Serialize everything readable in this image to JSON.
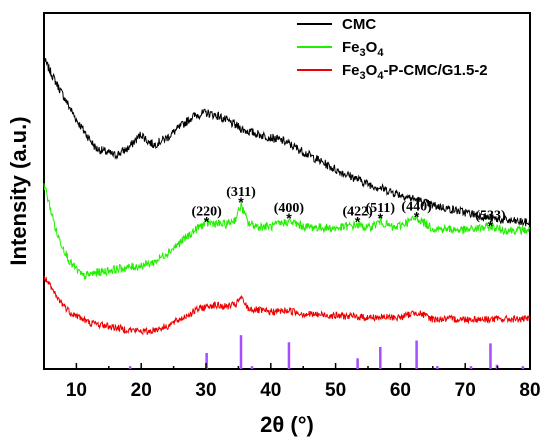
{
  "chart_data": {
    "type": "line",
    "xlabel": "2θ (°)",
    "ylabel": "Intensity (a.u.)",
    "xlim": [
      5,
      80
    ],
    "xticks": [
      "10",
      "20",
      "30",
      "40",
      "50",
      "60",
      "70",
      "80"
    ],
    "ylim": [
      0,
      100
    ],
    "legend_position": "top-right",
    "series": [
      {
        "key": "cmc",
        "name": "CMC",
        "name_sub": "",
        "name_parts": [
          "CMC"
        ],
        "color": "#000000",
        "noise": 1.2,
        "x": [
          5,
          7,
          10,
          13,
          16,
          18,
          19,
          20,
          21,
          22,
          24,
          26,
          28,
          30,
          32,
          34,
          36,
          38,
          40,
          42,
          44,
          46,
          50,
          55,
          60,
          65,
          70,
          75,
          80
        ],
        "y": [
          87,
          80,
          70,
          62,
          60,
          62,
          64,
          66,
          64,
          63,
          65,
          68,
          71,
          72,
          71,
          69,
          67,
          66,
          65,
          64,
          62,
          60,
          56,
          52,
          49,
          46,
          44,
          42,
          41
        ]
      },
      {
        "key": "fe3o4",
        "name": "Fe3O4",
        "name_parts": [
          "Fe",
          "3",
          "O",
          "4"
        ],
        "color": "#22ee00",
        "noise": 1.2,
        "x": [
          5,
          7,
          9,
          11,
          13,
          16,
          20,
          22,
          25,
          27,
          29,
          30,
          31,
          33,
          34.5,
          35.4,
          36.5,
          38,
          40,
          42.8,
          45,
          50,
          53.4,
          55,
          56.9,
          59,
          62.5,
          65,
          70,
          73.9,
          76,
          80
        ],
        "y": [
          52,
          38,
          30,
          26,
          27,
          28,
          29,
          30,
          34,
          37,
          40,
          41,
          41,
          40.5,
          42,
          46,
          41,
          40,
          40,
          41.5,
          40,
          39.5,
          40.5,
          39.5,
          41.5,
          39.5,
          42.5,
          39.5,
          39,
          40,
          39,
          39
        ]
      },
      {
        "key": "composite",
        "name": "Fe3O4-P-CMC/G1.5-2",
        "name_parts": [
          "Fe",
          "3",
          "O",
          "4",
          "-P-CMC/G1.5-2"
        ],
        "color": "#ee0000",
        "noise": 1.0,
        "x": [
          5,
          7,
          9,
          12,
          15,
          18,
          21,
          24,
          27,
          29,
          31,
          33,
          34.5,
          35.4,
          36.5,
          38,
          40,
          42.8,
          45,
          50,
          55,
          60,
          62.5,
          65,
          70,
          75,
          80
        ],
        "y": [
          26,
          20,
          16,
          13,
          12,
          11,
          10.5,
          12,
          15,
          17,
          18,
          17.5,
          18,
          20,
          17,
          16.5,
          16,
          16.5,
          15.5,
          15,
          14.5,
          14.5,
          16,
          14,
          14,
          14,
          14
        ]
      }
    ],
    "reference_pattern": {
      "color": "#a64dff",
      "x": [
        18.3,
        30.1,
        35.4,
        37.1,
        42.8,
        53.4,
        56.9,
        62.5,
        65.7,
        70.9,
        73.9,
        74.9,
        78.9
      ],
      "heights": [
        0.8,
        4.5,
        9.5,
        0.8,
        7.5,
        3,
        6.2,
        8,
        0.8,
        0.8,
        7.2,
        1.2,
        0.8
      ]
    },
    "annotations": [
      {
        "label": "(220)",
        "x": 30.1,
        "y": 42.5
      },
      {
        "label": "(311)",
        "x": 35.4,
        "y": 48
      },
      {
        "label": "(400)",
        "x": 42.8,
        "y": 43.5
      },
      {
        "label": "(422)",
        "x": 53.4,
        "y": 42.5
      },
      {
        "label": "(511)",
        "x": 56.9,
        "y": 43.5
      },
      {
        "label": "(440)",
        "x": 62.5,
        "y": 44
      },
      {
        "label": "(533)",
        "x": 73.9,
        "y": 41.5
      }
    ],
    "star": "*"
  }
}
